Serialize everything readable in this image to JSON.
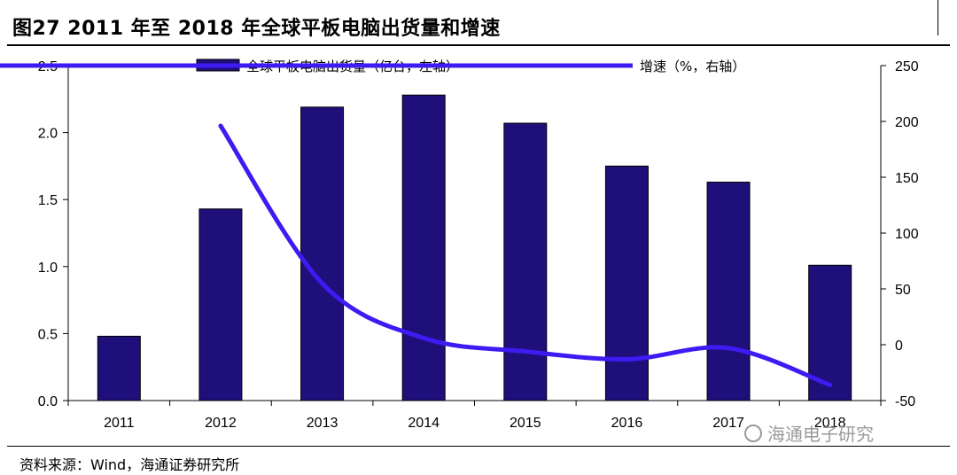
{
  "title": "图27  2011 年至 2018 年全球平板电脑出货量和增速",
  "source": "资料来源：Wind，海通证券研究所",
  "watermark": "海通电子研究",
  "colors": {
    "bar": "#1f0f7a",
    "line": "#3d1bf2",
    "axis": "#000000",
    "watermark": "#9a9a9a"
  },
  "chart_data": {
    "type": "bar",
    "categories": [
      "2011",
      "2012",
      "2013",
      "2014",
      "2015",
      "2016",
      "2017",
      "2018"
    ],
    "series": [
      {
        "name": "全球平板电脑出货量（亿台，左轴）",
        "type": "bar",
        "axis": "left",
        "values": [
          0.48,
          1.43,
          2.19,
          2.28,
          2.07,
          1.75,
          1.63,
          1.01
        ]
      },
      {
        "name": "增速（%，右轴）",
        "type": "line",
        "axis": "right",
        "values": [
          null,
          196,
          55,
          6,
          -6,
          -13,
          -3,
          -36
        ]
      }
    ],
    "ylim_left": [
      0,
      2.5
    ],
    "yticks_left": [
      "0.0",
      "0.5",
      "1.0",
      "1.5",
      "2.0",
      "2.5"
    ],
    "ylim_right": [
      -50,
      250
    ],
    "yticks_right": [
      "-50",
      "0",
      "50",
      "100",
      "150",
      "200",
      "250"
    ],
    "legend_position": "top",
    "grid": false
  }
}
